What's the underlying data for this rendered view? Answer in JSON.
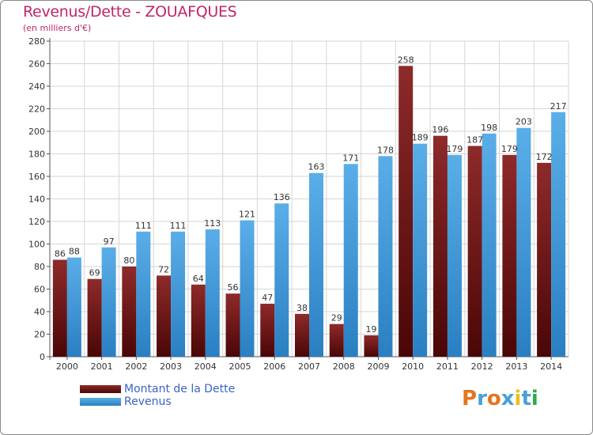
{
  "header": {
    "title": "Revenus/Dette - ZOUAFQUES",
    "subtitle": "(en milliers d'€)"
  },
  "legend": {
    "items": [
      {
        "label": "Montant de la Dette",
        "color": "#7a1a1a"
      },
      {
        "label": "Revenus",
        "color": "#3b97d8"
      }
    ]
  },
  "logo": {
    "text": "Proxiti",
    "colors": [
      "#e8741c",
      "#4a9fd8",
      "#e8741c",
      "#4a9fd8",
      "#e8c21c",
      "#4a9fd8",
      "#2eaa4a"
    ]
  },
  "chart_data": {
    "type": "bar",
    "categories": [
      "2000",
      "2001",
      "2002",
      "2003",
      "2004",
      "2005",
      "2006",
      "2007",
      "2008",
      "2009",
      "2010",
      "2011",
      "2012",
      "2013",
      "2014"
    ],
    "series": [
      {
        "name": "Montant de la Dette",
        "color": "#7a1a1a",
        "values": [
          86,
          69,
          80,
          72,
          64,
          56,
          47,
          38,
          29,
          19,
          258,
          196,
          187,
          179,
          172
        ]
      },
      {
        "name": "Revenus",
        "color": "#3b97d8",
        "values": [
          88,
          97,
          111,
          111,
          113,
          121,
          136,
          163,
          171,
          178,
          189,
          179,
          198,
          203,
          217
        ]
      }
    ],
    "ylim": [
      0,
      280
    ],
    "yticks": [
      0,
      20,
      40,
      60,
      80,
      100,
      120,
      140,
      160,
      180,
      200,
      220,
      240,
      260,
      280
    ],
    "grid": true,
    "legend_position": "bottom-left"
  }
}
